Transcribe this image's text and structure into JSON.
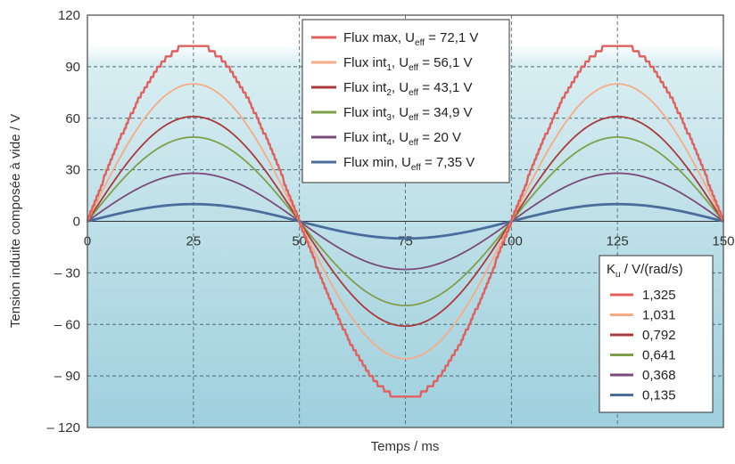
{
  "chart_data": {
    "type": "line",
    "xlabel": "Temps / ms",
    "ylabel": "Tension induite composée à vide / V",
    "xlim": [
      0,
      150
    ],
    "ylim": [
      -120,
      120
    ],
    "x_ticks": [
      "0",
      "25",
      "50",
      "75",
      "100",
      "125",
      "150"
    ],
    "y_ticks": [
      "120",
      "90",
      "60",
      "30",
      "0",
      "– 30",
      "– 60",
      "– 90",
      "– 120"
    ],
    "grid": true,
    "period_ms": 100,
    "series": [
      {
        "name": "Flux max",
        "legend_sub": "",
        "ueff": "72,1 V",
        "ku": "1,325",
        "color": "#e0605e",
        "amplitude": 103,
        "stepped": true,
        "values": [
          {
            "x": 0,
            "y": 0
          },
          {
            "x": 12.5,
            "y": 72.8
          },
          {
            "x": 25,
            "y": 103
          },
          {
            "x": 37.5,
            "y": 72.8
          },
          {
            "x": 50,
            "y": 0
          },
          {
            "x": 62.5,
            "y": -72.8
          },
          {
            "x": 75,
            "y": -103
          },
          {
            "x": 87.5,
            "y": -72.8
          },
          {
            "x": 100,
            "y": 0
          },
          {
            "x": 112.5,
            "y": 72.8
          },
          {
            "x": 125,
            "y": 103
          },
          {
            "x": 137.5,
            "y": 72.8
          },
          {
            "x": 150,
            "y": 0
          }
        ]
      },
      {
        "name": "Flux int",
        "legend_sub": "1",
        "ueff": "56,1 V",
        "ku": "1,031",
        "color": "#f7ab84",
        "amplitude": 80,
        "stepped": false,
        "values": [
          {
            "x": 0,
            "y": 0
          },
          {
            "x": 12.5,
            "y": 56.6
          },
          {
            "x": 25,
            "y": 80
          },
          {
            "x": 37.5,
            "y": 56.6
          },
          {
            "x": 50,
            "y": 0
          },
          {
            "x": 62.5,
            "y": -56.6
          },
          {
            "x": 75,
            "y": -80
          },
          {
            "x": 87.5,
            "y": -56.6
          },
          {
            "x": 100,
            "y": 0
          },
          {
            "x": 112.5,
            "y": 56.6
          },
          {
            "x": 125,
            "y": 80
          },
          {
            "x": 137.5,
            "y": 56.6
          },
          {
            "x": 150,
            "y": 0
          }
        ]
      },
      {
        "name": "Flux int",
        "legend_sub": "2",
        "ueff": "43,1 V",
        "ku": "0,792",
        "color": "#a83a3c",
        "amplitude": 61,
        "stepped": false,
        "values": [
          {
            "x": 0,
            "y": 0
          },
          {
            "x": 12.5,
            "y": 43.1
          },
          {
            "x": 25,
            "y": 61
          },
          {
            "x": 37.5,
            "y": 43.1
          },
          {
            "x": 50,
            "y": 0
          },
          {
            "x": 62.5,
            "y": -43.1
          },
          {
            "x": 75,
            "y": -61
          },
          {
            "x": 87.5,
            "y": -43.1
          },
          {
            "x": 100,
            "y": 0
          },
          {
            "x": 112.5,
            "y": 43.1
          },
          {
            "x": 125,
            "y": 61
          },
          {
            "x": 137.5,
            "y": 43.1
          },
          {
            "x": 150,
            "y": 0
          }
        ]
      },
      {
        "name": "Flux int",
        "legend_sub": "3",
        "ueff": "34,9 V",
        "ku": "0,641",
        "color": "#7f9f48",
        "amplitude": 49,
        "stepped": false,
        "values": [
          {
            "x": 0,
            "y": 0
          },
          {
            "x": 12.5,
            "y": 34.6
          },
          {
            "x": 25,
            "y": 49
          },
          {
            "x": 37.5,
            "y": 34.6
          },
          {
            "x": 50,
            "y": 0
          },
          {
            "x": 62.5,
            "y": -34.6
          },
          {
            "x": 75,
            "y": -49
          },
          {
            "x": 87.5,
            "y": -34.6
          },
          {
            "x": 100,
            "y": 0
          },
          {
            "x": 112.5,
            "y": 34.6
          },
          {
            "x": 125,
            "y": 49
          },
          {
            "x": 137.5,
            "y": 34.6
          },
          {
            "x": 150,
            "y": 0
          }
        ]
      },
      {
        "name": "Flux int",
        "legend_sub": "4",
        "ueff": "20 V",
        "ku": "0,368",
        "color": "#7a4a78",
        "amplitude": 28,
        "stepped": false,
        "values": [
          {
            "x": 0,
            "y": 0
          },
          {
            "x": 12.5,
            "y": 19.8
          },
          {
            "x": 25,
            "y": 28
          },
          {
            "x": 37.5,
            "y": 19.8
          },
          {
            "x": 50,
            "y": 0
          },
          {
            "x": 62.5,
            "y": -19.8
          },
          {
            "x": 75,
            "y": -28
          },
          {
            "x": 87.5,
            "y": -19.8
          },
          {
            "x": 100,
            "y": 0
          },
          {
            "x": 112.5,
            "y": 19.8
          },
          {
            "x": 125,
            "y": 28
          },
          {
            "x": 137.5,
            "y": 19.8
          },
          {
            "x": 150,
            "y": 0
          }
        ]
      },
      {
        "name": "Flux min",
        "legend_sub": "",
        "ueff": "7,35 V",
        "ku": "0,135",
        "color": "#4a6d9c",
        "amplitude": 10,
        "stepped": false,
        "values": [
          {
            "x": 0,
            "y": 0
          },
          {
            "x": 12.5,
            "y": 7.1
          },
          {
            "x": 25,
            "y": 10
          },
          {
            "x": 37.5,
            "y": 7.1
          },
          {
            "x": 50,
            "y": 0
          },
          {
            "x": 62.5,
            "y": -7.1
          },
          {
            "x": 75,
            "y": -10
          },
          {
            "x": 87.5,
            "y": -7.1
          },
          {
            "x": 100,
            "y": 0
          },
          {
            "x": 112.5,
            "y": 7.1
          },
          {
            "x": 125,
            "y": 10
          },
          {
            "x": 137.5,
            "y": 7.1
          },
          {
            "x": 150,
            "y": 0
          }
        ]
      }
    ],
    "legend_ueff": {
      "placement": "top-center",
      "ueff_prefix": "U",
      "ueff_sub": "eff",
      "ueff_eq": " = "
    },
    "legend_ku": {
      "placement": "bottom-right",
      "title_main": "K",
      "title_sub": "u",
      "title_rest": " / V/(rad/s)"
    }
  }
}
